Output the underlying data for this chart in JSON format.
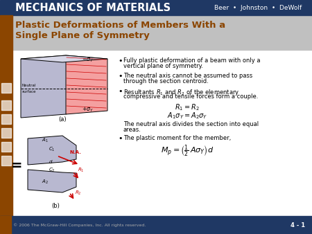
{
  "title_bar_color": "#1F3864",
  "title_bar_text": "MECHANICS OF MATERIALS",
  "title_bar_authors": "Beer  •  Johnston  •  DeWolf",
  "subtitle_bg_color": "#C0C0C0",
  "subtitle_text": "Plastic Deformations of Members With a\nSingle Plane of Symmetry",
  "subtitle_color": "#8B4500",
  "main_bg_color": "#E8E8E8",
  "left_sidebar_color": "#8B4500",
  "footer_bg_color": "#1F3864",
  "footer_text": "© 2006 The McGraw-Hill Companies, Inc. All rights reserved.",
  "footer_page": "4 - 1",
  "bullet_points": [
    "Fully plastic deformation of a beam with only a vertical plane of symmetry.",
    "The neutral axis cannot be assumed to pass through the section centroid.",
    "Resultants R₁ and R₂ of the elementary compressive and tensile forces form a couple.",
    "The neutral axis divides the section into equal areas.",
    "The plastic moment for the member,"
  ],
  "eq1": "R₁ = R₂",
  "eq2": "A₁σY = A₂σY",
  "eq3": "Mₚ = (½ AσY) d",
  "text_color": "#000000",
  "bullet_color": "#000000"
}
